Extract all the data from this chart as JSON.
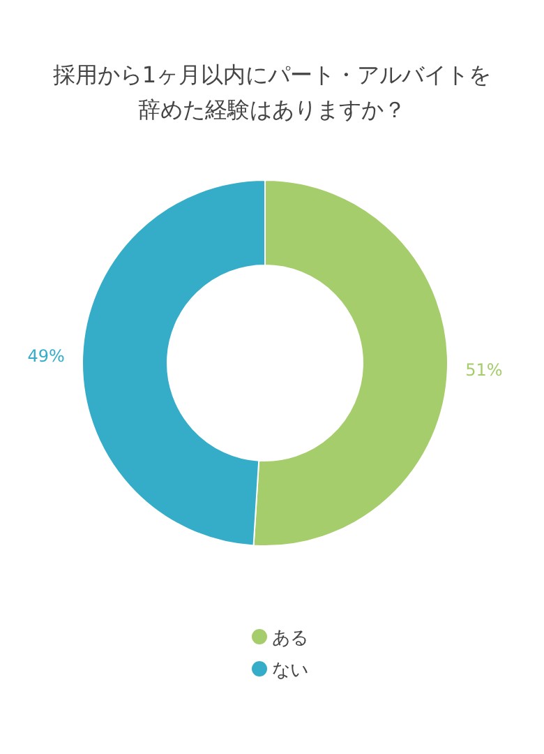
{
  "chart_data": {
    "type": "donut",
    "title": "採用から1ヶ月以内にパート・アルバイトを辞めた経験はありますか？",
    "categories": [
      "ある",
      "ない"
    ],
    "values": [
      51,
      49
    ],
    "colors": [
      "#a5cd6b",
      "#35adc9"
    ],
    "value_labels": [
      "51%",
      "49%"
    ],
    "legend": "bottom"
  }
}
